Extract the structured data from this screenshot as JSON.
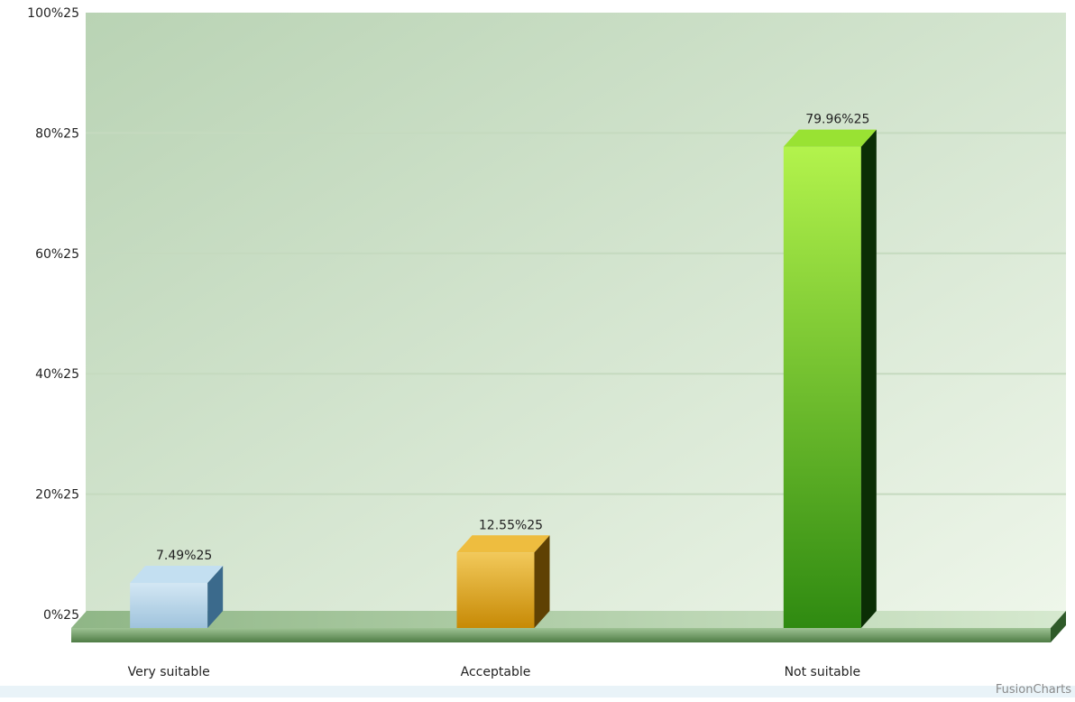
{
  "chart_data": {
    "type": "bar",
    "categories": [
      "Very suitable",
      "Acceptable",
      "Not suitable"
    ],
    "values": [
      7.49,
      12.55,
      79.96
    ],
    "data_labels": [
      "7.49%25",
      "12.55%25",
      "79.96%25"
    ],
    "y_ticks": [
      0,
      20,
      40,
      60,
      80,
      100
    ],
    "y_tick_labels": [
      "0%25",
      "20%25",
      "40%25",
      "60%25",
      "80%25",
      "100%25"
    ],
    "ylim": [
      0,
      100
    ],
    "title": "",
    "xlabel": "",
    "ylabel": "",
    "grid": true,
    "legend": "none",
    "style": "3d-column",
    "bar_colors": [
      {
        "front_top": "#d3e7f4",
        "front_bottom": "#9fc3dc",
        "side": "#3b6a8c",
        "top": "#c3dff1"
      },
      {
        "front_top": "#f2c95a",
        "front_bottom": "#c78a06",
        "side": "#5f4103",
        "top": "#eebd3f"
      },
      {
        "front_top": "#b3f34c",
        "front_bottom": "#2f8a11",
        "side": "#0b2e05",
        "top": "#99e233"
      }
    ],
    "background_colors": [
      "#b9d3b4",
      "#eef6ea"
    ],
    "gridline_color": "#c5dabf",
    "floor_color": "#9fc395"
  },
  "credit": "FusionCharts"
}
